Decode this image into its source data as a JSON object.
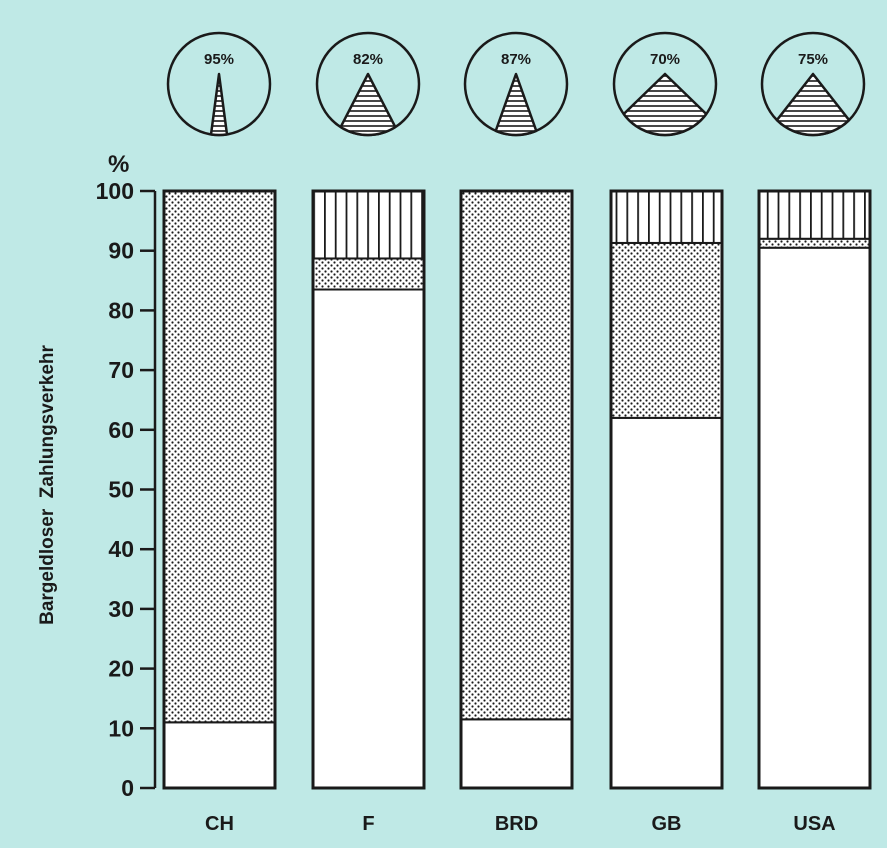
{
  "chart_data": {
    "type": "bar",
    "stacked": true,
    "ylabel": "Bargeldloser  Zahlungsverkehr",
    "yunit": "%",
    "ylim": [
      0,
      100
    ],
    "yticks": [
      0,
      10,
      20,
      30,
      40,
      50,
      60,
      70,
      80,
      90,
      100
    ],
    "grid": false,
    "categories": [
      "CH",
      "F",
      "BRD",
      "GB",
      "USA"
    ],
    "series": [
      {
        "pattern": "plain",
        "values": [
          11,
          83.5,
          11.5,
          62,
          90.5
        ]
      },
      {
        "pattern": "dotted",
        "values": [
          89,
          5.2,
          88.5,
          29.3,
          1.5
        ]
      },
      {
        "pattern": "vertical-lines",
        "values": [
          0,
          11.3,
          0,
          8.7,
          8
        ]
      }
    ],
    "pie_labels": [
      "95%",
      "82%",
      "87%",
      "70%",
      "75%"
    ],
    "pie_values": [
      95,
      82,
      87,
      70,
      75
    ],
    "colors": {
      "background": "#bfe9e6",
      "ink": "#1a1a1a",
      "bar_fill": "#ffffff"
    }
  }
}
